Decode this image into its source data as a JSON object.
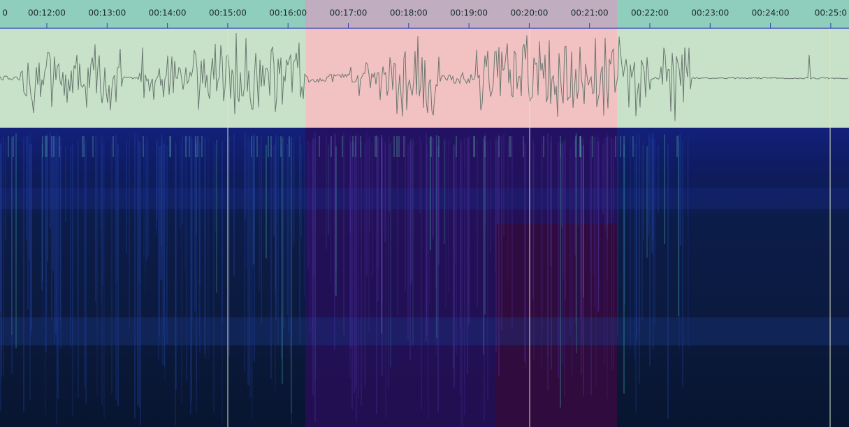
{
  "ruler": {
    "labels": [
      "0",
      "00:12:00",
      "00:13:00",
      "00:14:00",
      "00:15:00",
      "00:16:00",
      "00:17:00",
      "00:18:00",
      "00:19:00",
      "00:20:00",
      "00:21:00",
      "00:22:00",
      "00:23:00",
      "00:24:00",
      "00:25:0"
    ]
  }
}
